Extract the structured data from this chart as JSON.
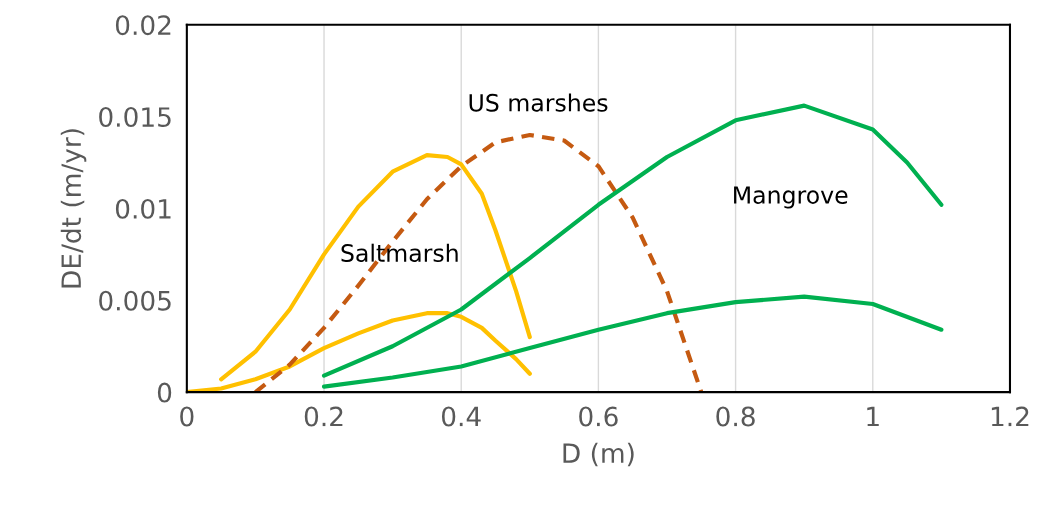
{
  "chart_data": {
    "type": "line",
    "xlabel": "D (m)",
    "ylabel": "DE/dt (m/yr)",
    "xlim": [
      0,
      1.2
    ],
    "xticks": [
      0,
      0.2,
      0.4,
      0.6,
      0.8,
      1,
      1.2
    ],
    "ylim": [
      0,
      0.02
    ],
    "yticks": [
      0,
      0.005,
      0.01,
      0.015,
      0.02
    ],
    "grid": "x",
    "legend": false,
    "marker": "none",
    "series": [
      {
        "color": "#ffc000",
        "x": [
          0.05,
          0.1,
          0.15,
          0.2,
          0.25,
          0.3,
          0.35,
          0.38,
          0.4,
          0.43,
          0.45,
          0.48,
          0.5
        ],
        "values": [
          0.0007,
          0.0022,
          0.0045,
          0.0075,
          0.0101,
          0.012,
          0.0129,
          0.0128,
          0.0124,
          0.0108,
          0.0088,
          0.0055,
          0.003
        ]
      },
      {
        "color": "#ffc000",
        "x": [
          0,
          0.05,
          0.1,
          0.15,
          0.2,
          0.25,
          0.3,
          0.35,
          0.38,
          0.4,
          0.43,
          0.45,
          0.48,
          0.5
        ],
        "values": [
          0,
          0.0002,
          0.0007,
          0.0014,
          0.0024,
          0.0032,
          0.0039,
          0.0043,
          0.0043,
          0.0041,
          0.0035,
          0.0028,
          0.0018,
          0.001
        ]
      },
      {
        "color": "#c55a11",
        "line_style": "dashed",
        "x": [
          0.1,
          0.15,
          0.2,
          0.25,
          0.3,
          0.35,
          0.4,
          0.45,
          0.5,
          0.55,
          0.6,
          0.65,
          0.7,
          0.75
        ],
        "values": [
          0,
          0.0015,
          0.0035,
          0.0058,
          0.0082,
          0.0105,
          0.0123,
          0.0136,
          0.014,
          0.0137,
          0.0123,
          0.0095,
          0.0055,
          0
        ]
      },
      {
        "color": "#00b050",
        "x": [
          0.2,
          0.3,
          0.4,
          0.5,
          0.6,
          0.7,
          0.8,
          0.9,
          1.0,
          1.05,
          1.1
        ],
        "values": [
          0.0009,
          0.0025,
          0.0045,
          0.0073,
          0.0102,
          0.0128,
          0.0148,
          0.0156,
          0.0143,
          0.0125,
          0.0102
        ]
      },
      {
        "color": "#00b050",
        "x": [
          0.2,
          0.3,
          0.4,
          0.5,
          0.6,
          0.7,
          0.8,
          0.9,
          1.0,
          1.1
        ],
        "values": [
          0.0003,
          0.0008,
          0.0014,
          0.0024,
          0.0034,
          0.0043,
          0.0049,
          0.0052,
          0.0048,
          0.0034
        ]
      }
    ],
    "annotations": [
      "Saltmarsh",
      "US marshes",
      "Mangrove"
    ]
  }
}
